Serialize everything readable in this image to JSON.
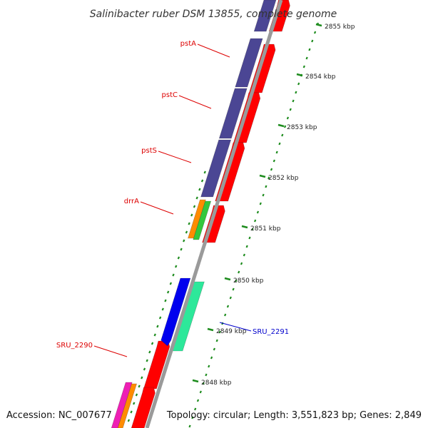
{
  "title": "Salinibacter ruber DSM 13855, complete genome",
  "accession": "Accession: NC_007677",
  "summary": "Topology: circular; Length: 3,551,823 bp; Genes: 2,849",
  "colors": {
    "backbone": "#9a9a9a",
    "ticks": "#1e8c1e",
    "forward_gene": "#ff0000",
    "pst_gene": "#4b4694",
    "label_red": "#dd0000",
    "label_blue": "#0000cc",
    "sru_2291_gene": "#2de89a",
    "blue_gene": "#0000ee",
    "orange_gene": "#ff8c00",
    "green_gene": "#33c83c",
    "magenta_gene": "#ee1fb4"
  },
  "ruler": [
    {
      "label": "2855 kbp"
    },
    {
      "label": "2854 kbp"
    },
    {
      "label": "2853 kbp"
    },
    {
      "label": "2852 kbp"
    },
    {
      "label": "2851 kbp"
    },
    {
      "label": "2850 kbp"
    },
    {
      "label": "2849 kbp"
    },
    {
      "label": "2848 kbp"
    }
  ],
  "gene_labels": [
    {
      "name": "pstA",
      "color": "label_red"
    },
    {
      "name": "pstC",
      "color": "label_red"
    },
    {
      "name": "pstS",
      "color": "label_red"
    },
    {
      "name": "drrA",
      "color": "label_red"
    },
    {
      "name": "SRU_2290",
      "color": "label_red"
    },
    {
      "name": "SRU_2291",
      "color": "label_blue"
    }
  ]
}
